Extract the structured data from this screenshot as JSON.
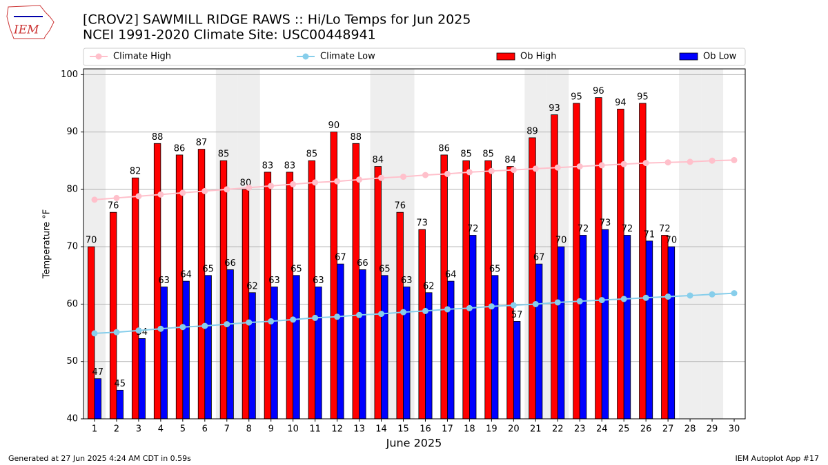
{
  "chart_data": {
    "type": "bar",
    "title": "[CROV2] SAWMILL RIDGE RAWS :: Hi/Lo Temps for Jun 2025",
    "subtitle": "NCEI 1991-2020 Climate Site: USC00448941",
    "xlabel": "June 2025",
    "ylabel": "Temperature $^\\circ$F",
    "logo_text": "IEM",
    "footer_left": "Generated at 27 Jun 2025 4:24 AM CDT in 0.59s",
    "footer_right": "IEM Autoplot App #17",
    "x": [
      1,
      2,
      3,
      4,
      5,
      6,
      7,
      8,
      9,
      10,
      11,
      12,
      13,
      14,
      15,
      16,
      17,
      18,
      19,
      20,
      21,
      22,
      23,
      24,
      25,
      26,
      27,
      28,
      29,
      30
    ],
    "xlim": [
      0.5,
      30.5
    ],
    "xticks": [
      1,
      2,
      3,
      4,
      5,
      6,
      7,
      8,
      9,
      10,
      11,
      12,
      13,
      14,
      15,
      16,
      17,
      18,
      19,
      20,
      21,
      22,
      23,
      24,
      25,
      26,
      27,
      28,
      29,
      30
    ],
    "ylim": [
      40,
      101
    ],
    "yticks": [
      40,
      50,
      60,
      70,
      80,
      90,
      100
    ],
    "grid": true,
    "series": [
      {
        "name": "Climate High",
        "type": "line",
        "color": "#ffc0cb",
        "values": [
          78.2,
          78.5,
          78.8,
          79.1,
          79.4,
          79.7,
          80.0,
          80.3,
          80.6,
          80.9,
          81.2,
          81.4,
          81.7,
          82.0,
          82.2,
          82.5,
          82.7,
          83.0,
          83.2,
          83.4,
          83.6,
          83.8,
          84.0,
          84.2,
          84.4,
          84.6,
          84.7,
          84.8,
          85.0,
          85.1
        ]
      },
      {
        "name": "Climate Low",
        "type": "line",
        "color": "#87ceeb",
        "values": [
          54.9,
          55.1,
          55.4,
          55.7,
          56.0,
          56.2,
          56.5,
          56.8,
          57.0,
          57.3,
          57.6,
          57.8,
          58.1,
          58.3,
          58.6,
          58.8,
          59.1,
          59.3,
          59.6,
          59.8,
          60.0,
          60.3,
          60.5,
          60.7,
          60.9,
          61.1,
          61.3,
          61.5,
          61.7,
          61.9
        ]
      },
      {
        "name": "Ob High",
        "type": "bar",
        "color": "#ff0000",
        "values": [
          70,
          76,
          82,
          88,
          86,
          87,
          85,
          80,
          83,
          83,
          85,
          90,
          88,
          84,
          76,
          73,
          86,
          85,
          85,
          84,
          89,
          93,
          95,
          96,
          94,
          95,
          72,
          null,
          null,
          null
        ]
      },
      {
        "name": "Ob Low",
        "type": "bar",
        "color": "#0000ff",
        "values": [
          47,
          45,
          54,
          63,
          64,
          65,
          66,
          62,
          63,
          65,
          63,
          67,
          66,
          65,
          63,
          62,
          64,
          72,
          65,
          57,
          67,
          70,
          72,
          73,
          72,
          71,
          70,
          null,
          null,
          null
        ]
      }
    ]
  }
}
